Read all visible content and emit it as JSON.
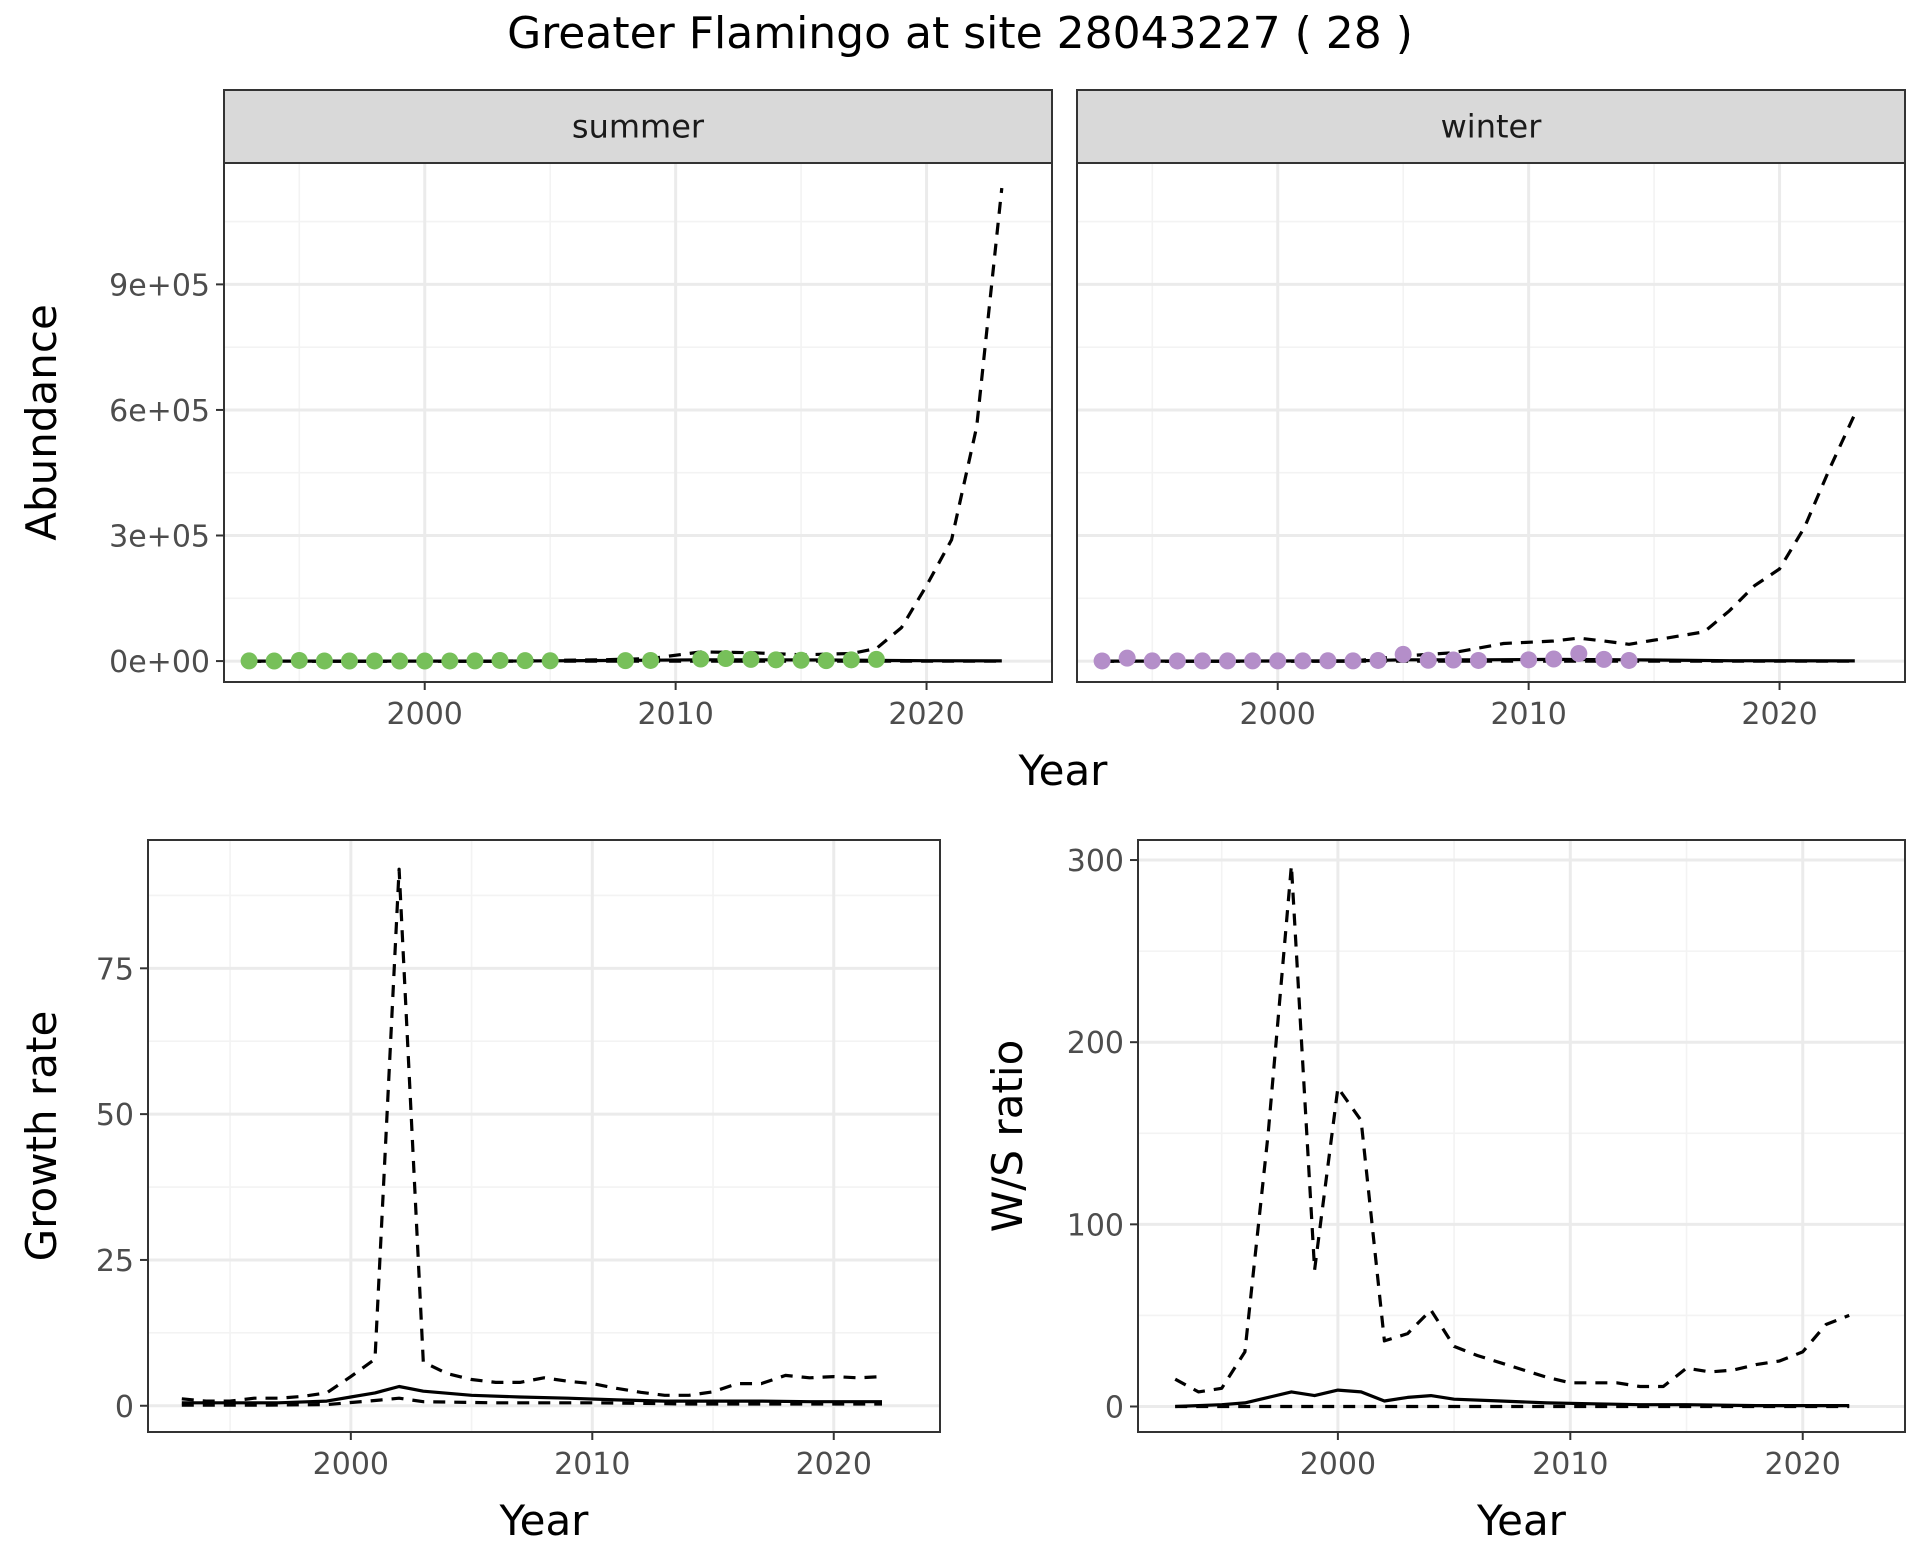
{
  "figure": {
    "title": "Greater Flamingo at site 28043227 ( 28 )"
  },
  "chart_data": [
    {
      "id": "summer",
      "type": "line",
      "strip": "summer",
      "xlabel": "",
      "ylabel": "Abundance",
      "xlim": [
        1992,
        2025
      ],
      "ylim": [
        -50000,
        1190000
      ],
      "xticks": [
        2000,
        2010,
        2020
      ],
      "yticks": [
        0,
        300000,
        600000,
        900000
      ],
      "ytick_labels": [
        "0e+00",
        "3e+05",
        "6e+05",
        "9e+05"
      ],
      "point_color": "#77c05a",
      "series": [
        {
          "style": "dashed",
          "x": [
            1993,
            1995,
            1997,
            1999,
            2001,
            2003,
            2005,
            2007,
            2009,
            2011,
            2013,
            2015,
            2017,
            2018,
            2019,
            2020,
            2021,
            2022,
            2023
          ],
          "y": [
            0,
            0,
            0,
            0,
            0,
            0,
            1500,
            3000,
            6000,
            22000,
            20000,
            15000,
            18000,
            30000,
            80000,
            180000,
            290000,
            560000,
            1130000
          ]
        },
        {
          "style": "dashed",
          "x": [
            1993,
            2000,
            2005,
            2010,
            2015,
            2020,
            2023
          ],
          "y": [
            0,
            0,
            0,
            0,
            0,
            0,
            0
          ]
        },
        {
          "style": "solid",
          "x": [
            1993,
            1998,
            2003,
            2008,
            2011,
            2013,
            2016,
            2018,
            2020,
            2023
          ],
          "y": [
            0,
            0,
            0,
            1500,
            3000,
            3000,
            2500,
            1500,
            800,
            500
          ]
        },
        {
          "style": "points",
          "x": [
            1993,
            1994,
            1995,
            1996,
            1997,
            1998,
            1999,
            2000,
            2001,
            2002,
            2003,
            2004,
            2005,
            2008,
            2009,
            2011,
            2012,
            2013,
            2014,
            2015,
            2016,
            2017,
            2018
          ],
          "y": [
            500,
            200,
            1500,
            300,
            200,
            300,
            200,
            200,
            300,
            400,
            1500,
            1000,
            800,
            1000,
            1500,
            5000,
            6000,
            4000,
            3000,
            2000,
            1000,
            3000,
            4000
          ]
        }
      ]
    },
    {
      "id": "winter",
      "type": "line",
      "strip": "winter",
      "xlabel": "",
      "ylabel": "",
      "xlim": [
        1992,
        2025
      ],
      "ylim": [
        -50000,
        1190000
      ],
      "xticks": [
        2000,
        2010,
        2020
      ],
      "yticks": [
        0,
        300000,
        600000,
        900000
      ],
      "point_color": "#b48ec9",
      "series": [
        {
          "style": "dashed",
          "x": [
            1993,
            1995,
            1997,
            1999,
            2001,
            2003,
            2005,
            2007,
            2009,
            2011,
            2012,
            2013,
            2014,
            2016,
            2017,
            2018,
            2019,
            2020,
            2021,
            2022,
            2023
          ],
          "y": [
            0,
            0,
            0,
            0,
            0,
            0,
            12000,
            20000,
            42000,
            48000,
            55000,
            48000,
            40000,
            60000,
            70000,
            120000,
            180000,
            220000,
            320000,
            460000,
            590000
          ]
        },
        {
          "style": "dashed",
          "x": [
            1993,
            2000,
            2005,
            2010,
            2015,
            2020,
            2023
          ],
          "y": [
            0,
            0,
            0,
            0,
            0,
            0,
            0
          ]
        },
        {
          "style": "solid",
          "x": [
            1993,
            1998,
            2003,
            2005,
            2008,
            2011,
            2014,
            2018,
            2023
          ],
          "y": [
            0,
            0,
            500,
            3000,
            3000,
            4000,
            3000,
            1000,
            500
          ]
        },
        {
          "style": "points",
          "x": [
            1993,
            1994,
            1995,
            1996,
            1997,
            1998,
            1999,
            2000,
            2001,
            2002,
            2003,
            2004,
            2005,
            2006,
            2007,
            2008,
            2010,
            2011,
            2012,
            2013,
            2014
          ],
          "y": [
            300,
            7000,
            500,
            300,
            500,
            500,
            500,
            400,
            400,
            700,
            500,
            1500,
            16000,
            2000,
            2500,
            1500,
            3000,
            5000,
            18000,
            4000,
            1500
          ]
        }
      ]
    },
    {
      "id": "growth",
      "type": "line",
      "xlabel": "Year",
      "ylabel": "Growth rate",
      "xlim": [
        1991.6,
        2024.4
      ],
      "ylim": [
        -4.5,
        97
      ],
      "xticks": [
        2000,
        2010,
        2020
      ],
      "yticks": [
        0,
        25,
        50,
        75
      ],
      "series": [
        {
          "style": "dashed",
          "x": [
            1993,
            1994,
            1995,
            1996,
            1997,
            1998,
            1999,
            2000,
            2001,
            2002,
            2003,
            2004,
            2005,
            2006,
            2007,
            2008,
            2009,
            2010,
            2011,
            2012,
            2013,
            2014,
            2015,
            2016,
            2017,
            2018,
            2019,
            2020,
            2021,
            2022
          ],
          "y": [
            1.2,
            0.8,
            0.8,
            1.3,
            1.3,
            1.6,
            2.2,
            5,
            8,
            92,
            7.5,
            5.5,
            4.5,
            4,
            4,
            4.8,
            4.2,
            3.8,
            3,
            2.3,
            1.8,
            1.8,
            2.4,
            3.8,
            3.8,
            5.2,
            4.8,
            5.0,
            4.8,
            5.0
          ]
        },
        {
          "style": "solid",
          "x": [
            1993,
            1995,
            1997,
            1999,
            2000,
            2001,
            2002,
            2003,
            2005,
            2007,
            2009,
            2011,
            2013,
            2015,
            2017,
            2019,
            2022
          ],
          "y": [
            0.5,
            0.5,
            0.5,
            0.8,
            1.5,
            2.2,
            3.3,
            2.5,
            1.8,
            1.5,
            1.3,
            1.0,
            0.8,
            0.8,
            0.8,
            0.7,
            0.7
          ]
        },
        {
          "style": "dashed",
          "x": [
            1993,
            1996,
            1999,
            2001,
            2002,
            2003,
            2006,
            2010,
            2014,
            2018,
            2022
          ],
          "y": [
            0.1,
            0.1,
            0.2,
            0.9,
            1.3,
            0.7,
            0.5,
            0.5,
            0.3,
            0.3,
            0.3
          ]
        }
      ]
    },
    {
      "id": "ratio",
      "type": "line",
      "xlabel": "Year",
      "ylabel": "W/S ratio",
      "xlim": [
        1991.4,
        2024.4
      ],
      "ylim": [
        -14,
        311
      ],
      "xticks": [
        2000,
        2010,
        2020
      ],
      "yticks": [
        0,
        100,
        200,
        300
      ],
      "series": [
        {
          "style": "dashed",
          "x": [
            1993,
            1994,
            1995,
            1996,
            1997,
            1998,
            1999,
            2000,
            2001,
            2002,
            2003,
            2004,
            2005,
            2006,
            2007,
            2008,
            2009,
            2010,
            2011,
            2012,
            2013,
            2014,
            2015,
            2016,
            2017,
            2018,
            2019,
            2020,
            2021,
            2022
          ],
          "y": [
            15,
            8,
            10,
            30,
            150,
            297,
            75,
            175,
            157,
            36,
            40,
            53,
            33,
            28,
            24,
            20,
            16,
            13,
            13,
            13,
            11,
            11,
            21,
            19,
            20,
            23,
            25,
            30,
            45,
            50
          ]
        },
        {
          "style": "solid",
          "x": [
            1993,
            1995,
            1996,
            1997,
            1998,
            1999,
            2000,
            2001,
            2002,
            2003,
            2004,
            2005,
            2007,
            2009,
            2011,
            2013,
            2015,
            2018,
            2022
          ],
          "y": [
            0,
            1,
            2,
            5,
            8,
            6,
            9,
            8,
            3,
            5,
            6,
            4,
            3,
            2,
            1.5,
            1,
            1,
            0.5,
            0.5
          ]
        },
        {
          "style": "dashed",
          "x": [
            1993,
            1998,
            2002,
            2006,
            2010,
            2014,
            2018,
            2022
          ],
          "y": [
            0,
            0,
            0,
            0,
            0,
            0,
            0,
            0
          ]
        }
      ]
    }
  ],
  "axis_titles": {
    "top_x": "Year"
  }
}
